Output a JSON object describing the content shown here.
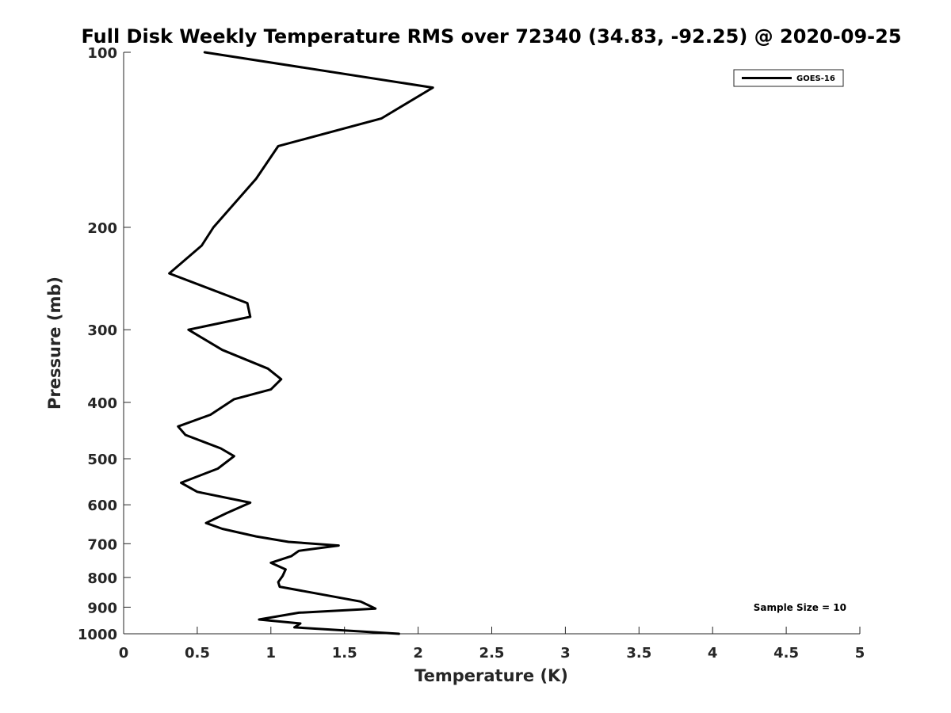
{
  "chart_data": {
    "type": "line",
    "title": "Full Disk Weekly Temperature RMS over 72340 (34.83, -92.25) @ 2020-09-25",
    "xlabel": "Temperature (K)",
    "ylabel": "Pressure (mb)",
    "xlim": [
      0,
      5
    ],
    "ylim": [
      100,
      1000
    ],
    "y_scale": "log",
    "y_reversed": true,
    "grid": false,
    "legend_position": "top-right",
    "x_ticks": [
      "0",
      "0.5",
      "1",
      "1.5",
      "2",
      "2.5",
      "3",
      "3.5",
      "4",
      "4.5",
      "5"
    ],
    "y_ticks": [
      "100",
      "200",
      "300",
      "400",
      "500",
      "600",
      "700",
      "800",
      "900",
      "1000"
    ],
    "series": [
      {
        "name": "GOES-16",
        "color": "#000000",
        "x": [
          0.55,
          2.1,
          1.75,
          1.05,
          0.9,
          0.61,
          0.53,
          0.31,
          0.84,
          0.86,
          0.44,
          0.67,
          0.98,
          1.07,
          1.0,
          0.75,
          0.59,
          0.37,
          0.42,
          0.66,
          0.75,
          0.64,
          0.39,
          0.5,
          0.86,
          0.7,
          0.56,
          0.67,
          0.9,
          1.12,
          1.46,
          1.19,
          1.14,
          1.0,
          1.1,
          1.08,
          1.05,
          1.06,
          1.61,
          1.71,
          1.19,
          0.92,
          1.2,
          1.16,
          1.87
        ],
        "y": [
          100,
          115,
          130,
          145,
          165,
          200,
          215,
          240,
          270,
          285,
          300,
          325,
          350,
          365,
          380,
          395,
          420,
          440,
          455,
          480,
          495,
          520,
          550,
          570,
          595,
          620,
          645,
          660,
          680,
          695,
          705,
          720,
          735,
          755,
          775,
          795,
          815,
          830,
          880,
          905,
          920,
          945,
          960,
          975,
          1000
        ]
      }
    ],
    "annotations": [
      "Sample Size = 10"
    ]
  }
}
